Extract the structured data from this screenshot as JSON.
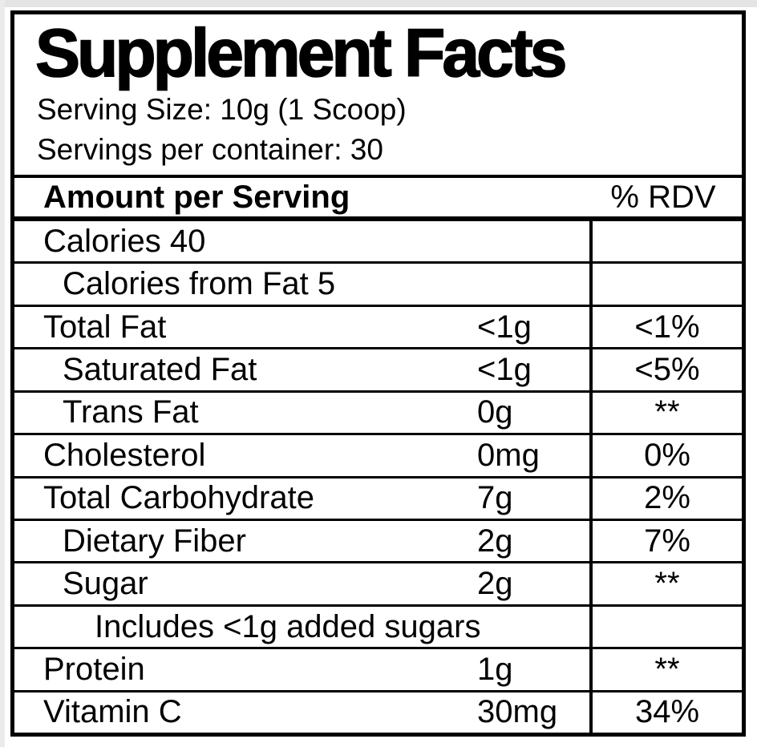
{
  "label": {
    "title": "Supplement Facts",
    "serving_size": "Serving Size: 10g (1 Scoop)",
    "servings_per_container": "Servings per container: 30",
    "header": {
      "amount_label": "Amount per Serving",
      "rdv_label": "% RDV"
    },
    "rows": [
      {
        "name": "Calories 40",
        "indent": 0,
        "amount": "",
        "rdv": ""
      },
      {
        "name": "Calories from Fat 5",
        "indent": 1,
        "amount": "",
        "rdv": ""
      },
      {
        "name": "Total Fat",
        "indent": 0,
        "amount": "<1g",
        "rdv": "<1%"
      },
      {
        "name": "Saturated Fat",
        "indent": 1,
        "amount": "<1g",
        "rdv": "<5%"
      },
      {
        "name": "Trans Fat",
        "indent": 1,
        "amount": "0g",
        "rdv": "**"
      },
      {
        "name": "Cholesterol",
        "indent": 0,
        "amount": "0mg",
        "rdv": "0%"
      },
      {
        "name": "Total Carbohydrate",
        "indent": 0,
        "amount": "7g",
        "rdv": "2%"
      },
      {
        "name": "Dietary Fiber",
        "indent": 1,
        "amount": "2g",
        "rdv": "7%"
      },
      {
        "name": "Sugar",
        "indent": 1,
        "amount": "2g",
        "rdv": "**"
      },
      {
        "name": "Includes <1g added sugars",
        "indent": 2,
        "amount": "",
        "rdv": ""
      },
      {
        "name": "Protein",
        "indent": 0,
        "amount": "1g",
        "rdv": "**"
      },
      {
        "name": "Vitamin C",
        "indent": 0,
        "amount": "30mg",
        "rdv": "34%"
      }
    ],
    "colors": {
      "border": "#000000",
      "text": "#000000",
      "background": "#ffffff"
    }
  }
}
